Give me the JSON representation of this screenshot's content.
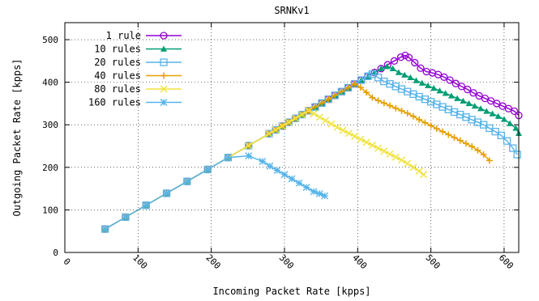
{
  "chart_data": {
    "type": "line",
    "title": "SRNKv1",
    "xlabel": "Incoming Packet Rate [kpps]",
    "ylabel": "Outgoing Packet Rate [kpps]",
    "xlim": [
      0,
      620
    ],
    "ylim": [
      0,
      540
    ],
    "x_ticks": [
      0,
      100,
      200,
      300,
      400,
      500,
      600
    ],
    "y_ticks": [
      0,
      100,
      200,
      300,
      400,
      500
    ],
    "grid": true,
    "legend_position": "top-left",
    "series": [
      {
        "name": "1 rule",
        "color": "#9400d3",
        "marker": "circle",
        "x": [
          55,
          83,
          111,
          139,
          167,
          195,
          223,
          251,
          279,
          288,
          297,
          306,
          315,
          324,
          333,
          342,
          351,
          360,
          369,
          378,
          387,
          396,
          405,
          414,
          423,
          432,
          441,
          450,
          459,
          465,
          470,
          478,
          486,
          494,
          502,
          510,
          518,
          526,
          534,
          542,
          550,
          558,
          566,
          574,
          582,
          590,
          598,
          606,
          614,
          620
        ],
        "y": [
          55,
          83,
          111,
          139,
          167,
          195,
          223,
          251,
          279,
          288,
          297,
          306,
          315,
          324,
          333,
          342,
          351,
          360,
          369,
          378,
          387,
          396,
          405,
          414,
          423,
          432,
          441,
          450,
          459,
          463,
          458,
          446,
          433,
          425,
          422,
          418,
          412,
          405,
          397,
          390,
          383,
          375,
          368,
          362,
          356,
          350,
          344,
          338,
          332,
          322
        ]
      },
      {
        "name": "10 rules",
        "color": "#009e73",
        "marker": "triangle",
        "x": [
          55,
          83,
          111,
          139,
          167,
          195,
          223,
          251,
          279,
          288,
          297,
          306,
          315,
          324,
          333,
          342,
          351,
          360,
          369,
          378,
          387,
          396,
          405,
          414,
          423,
          432,
          440,
          448,
          456,
          464,
          472,
          480,
          488,
          496,
          504,
          512,
          520,
          528,
          536,
          544,
          552,
          560,
          568,
          576,
          584,
          592,
          600,
          608,
          616,
          620
        ],
        "y": [
          55,
          83,
          111,
          139,
          167,
          195,
          223,
          251,
          279,
          288,
          297,
          306,
          315,
          324,
          333,
          342,
          351,
          360,
          369,
          378,
          387,
          396,
          405,
          414,
          423,
          432,
          437,
          432,
          423,
          417,
          411,
          404,
          398,
          392,
          386,
          380,
          374,
          368,
          362,
          356,
          350,
          344,
          338,
          332,
          326,
          320,
          313,
          303,
          292,
          280
        ]
      },
      {
        "name": "20 rules",
        "color": "#56b4e9",
        "marker": "box",
        "x": [
          55,
          83,
          111,
          139,
          167,
          195,
          223,
          251,
          279,
          288,
          297,
          306,
          315,
          324,
          333,
          342,
          351,
          360,
          369,
          378,
          387,
          396,
          405,
          414,
          420,
          428,
          436,
          444,
          452,
          460,
          468,
          476,
          484,
          492,
          500,
          508,
          516,
          524,
          532,
          540,
          548,
          556,
          564,
          572,
          580,
          588,
          596,
          604,
          612,
          618
        ],
        "y": [
          55,
          83,
          111,
          139,
          167,
          195,
          223,
          251,
          279,
          288,
          297,
          306,
          315,
          324,
          333,
          342,
          351,
          360,
          369,
          378,
          387,
          396,
          405,
          414,
          419,
          411,
          402,
          396,
          390,
          384,
          378,
          372,
          366,
          360,
          354,
          348,
          342,
          336,
          330,
          324,
          318,
          312,
          306,
          300,
          292,
          284,
          275,
          262,
          245,
          230
        ]
      },
      {
        "name": "40 rules",
        "color": "#e69f00",
        "marker": "plus",
        "x": [
          55,
          83,
          111,
          139,
          167,
          195,
          223,
          251,
          279,
          288,
          297,
          306,
          315,
          324,
          333,
          342,
          351,
          360,
          369,
          378,
          387,
          396,
          404,
          412,
          420,
          428,
          436,
          444,
          452,
          460,
          468,
          476,
          484,
          492,
          500,
          508,
          516,
          524,
          532,
          540,
          548,
          556,
          564,
          572,
          580
        ],
        "y": [
          55,
          83,
          111,
          139,
          167,
          195,
          223,
          251,
          279,
          288,
          297,
          306,
          315,
          324,
          333,
          342,
          351,
          360,
          369,
          378,
          387,
          396,
          388,
          376,
          364,
          357,
          351,
          345,
          339,
          333,
          327,
          320,
          312,
          305,
          298,
          291,
          284,
          277,
          270,
          263,
          256,
          249,
          240,
          230,
          216
        ]
      },
      {
        "name": "80 rules",
        "color": "#f0e442",
        "marker": "cross",
        "x": [
          55,
          83,
          111,
          139,
          167,
          195,
          223,
          251,
          279,
          288,
          297,
          306,
          315,
          324,
          333,
          340,
          348,
          356,
          364,
          372,
          380,
          388,
          396,
          404,
          412,
          420,
          428,
          436,
          444,
          452,
          460,
          468,
          476,
          484,
          490
        ],
        "y": [
          55,
          83,
          111,
          139,
          167,
          195,
          223,
          251,
          279,
          288,
          297,
          306,
          315,
          324,
          333,
          326,
          318,
          310,
          302,
          294,
          287,
          280,
          273,
          266,
          259,
          252,
          245,
          238,
          231,
          224,
          217,
          209,
          200,
          191,
          183
        ]
      },
      {
        "name": "160 rules",
        "color": "#56b4e9",
        "marker": "star",
        "x": [
          55,
          83,
          111,
          139,
          167,
          195,
          223,
          251,
          270,
          280,
          290,
          300,
          310,
          320,
          330,
          340,
          348,
          355
        ],
        "y": [
          55,
          83,
          111,
          139,
          167,
          195,
          223,
          227,
          214,
          203,
          193,
          183,
          173,
          163,
          153,
          143,
          138,
          133
        ]
      }
    ]
  }
}
